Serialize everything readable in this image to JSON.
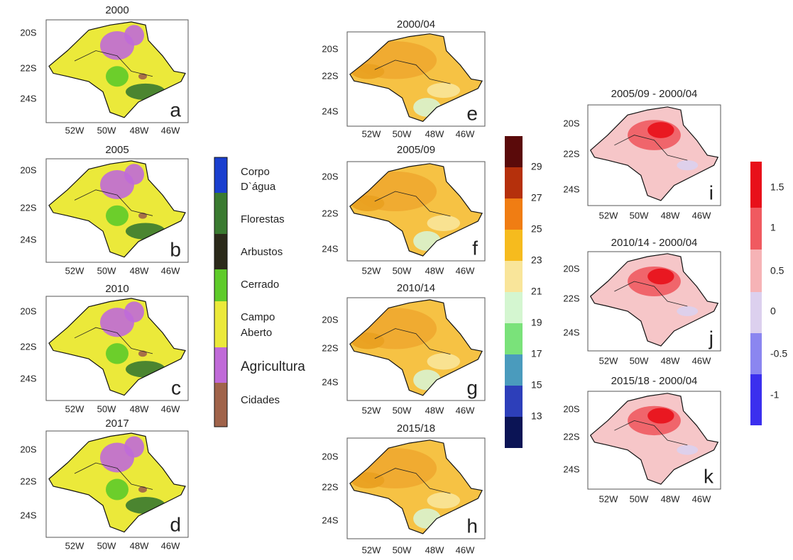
{
  "panels": [
    {
      "title": "2000",
      "letter": "a",
      "lat": [
        "20S",
        "22S",
        "24S"
      ],
      "lon": [
        "52W",
        "50W",
        "48W",
        "46W"
      ]
    },
    {
      "title": "2005",
      "letter": "b",
      "lat": [
        "20S",
        "22S",
        "24S"
      ],
      "lon": [
        "52W",
        "50W",
        "48W",
        "46W"
      ]
    },
    {
      "title": "2010",
      "letter": "c",
      "lat": [
        "20S",
        "22S",
        "24S"
      ],
      "lon": [
        "52W",
        "50W",
        "48W",
        "46W"
      ]
    },
    {
      "title": "2017",
      "letter": "d",
      "lat": [
        "20S",
        "22S",
        "24S"
      ],
      "lon": [
        "52W",
        "50W",
        "48W",
        "46W"
      ]
    },
    {
      "title": "2000/04",
      "letter": "e",
      "lat": [
        "20S",
        "22S",
        "24S"
      ],
      "lon": [
        "52W",
        "50W",
        "48W",
        "46W"
      ]
    },
    {
      "title": "2005/09",
      "letter": "f",
      "lat": [
        "20S",
        "22S",
        "24S"
      ],
      "lon": [
        "52W",
        "50W",
        "48W",
        "46W"
      ]
    },
    {
      "title": "2010/14",
      "letter": "g",
      "lat": [
        "20S",
        "22S",
        "24S"
      ],
      "lon": [
        "52W",
        "50W",
        "48W",
        "46W"
      ]
    },
    {
      "title": "2015/18",
      "letter": "h",
      "lat": [
        "20S",
        "22S",
        "24S"
      ],
      "lon": [
        "52W",
        "50W",
        "48W",
        "46W"
      ]
    },
    {
      "title": "2005/09 - 2000/04",
      "letter": "i",
      "lat": [
        "20S",
        "22S",
        "24S"
      ],
      "lon": [
        "52W",
        "50W",
        "48W",
        "46W"
      ]
    },
    {
      "title": "2010/14 - 2000/04",
      "letter": "j",
      "lat": [
        "20S",
        "22S",
        "24S"
      ],
      "lon": [
        "52W",
        "50W",
        "48W",
        "46W"
      ]
    },
    {
      "title": "2015/18 - 2000/04",
      "letter": "k",
      "lat": [
        "20S",
        "22S",
        "24S"
      ],
      "lon": [
        "52W",
        "50W",
        "48W",
        "46W"
      ]
    }
  ],
  "legends": {
    "land_cover": [
      "Corpo",
      "D`água",
      "Florestas",
      "Arbustos",
      "Cerrado",
      "Campo",
      "Aberto",
      "Agricultura",
      "Cidades"
    ],
    "temperature": [
      "29",
      "27",
      "25",
      "23",
      "21",
      "19",
      "17",
      "15",
      "13"
    ],
    "difference": [
      "1.5",
      "1",
      "0.5",
      "0",
      "-0.5",
      "-1"
    ]
  }
}
